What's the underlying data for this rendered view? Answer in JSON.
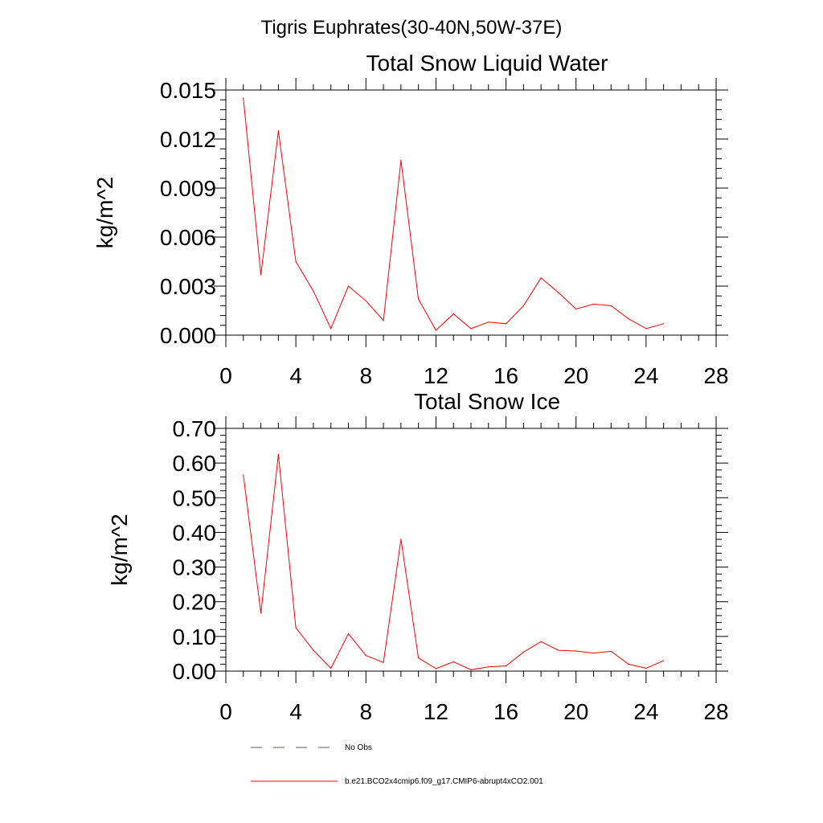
{
  "page_title": "Tigris Euphrates(30-40N,50W-37E)",
  "legend": [
    {
      "label": "No Obs",
      "style": "dashed",
      "color": "#5a5a7a"
    },
    {
      "label": "b.e21.BCO2x4cmip6.f09_g17.CMIP6-abrupt4xCO2.001",
      "style": "solid",
      "color": "#ff0000"
    }
  ],
  "chart_data": [
    {
      "type": "line",
      "title": "Total Snow Liquid Water",
      "xlabel": "",
      "ylabel": "kg/m^2",
      "xlim": [
        0,
        28
      ],
      "ylim": [
        0,
        0.015
      ],
      "x_ticks": [
        "0",
        "4",
        "8",
        "12",
        "16",
        "20",
        "24",
        "28"
      ],
      "x_tick_values": [
        0,
        4,
        8,
        12,
        16,
        20,
        24,
        28
      ],
      "y_ticks": [
        "0.000",
        "0.003",
        "0.006",
        "0.009",
        "0.012",
        "0.015"
      ],
      "y_tick_values": [
        0,
        0.003,
        0.006,
        0.009,
        0.012,
        0.015
      ],
      "series": [
        {
          "name": "b.e21.BCO2x4cmip6.f09_g17.CMIP6-abrupt4xCO2.001",
          "color": "#ff0000",
          "x": [
            1,
            2,
            3,
            4,
            5,
            6,
            7,
            8,
            9,
            10,
            11,
            12,
            13,
            14,
            15,
            16,
            17,
            18,
            19,
            20,
            21,
            22,
            23,
            24,
            25
          ],
          "values": [
            0.0145,
            0.0037,
            0.0125,
            0.0045,
            0.0027,
            0.0004,
            0.003,
            0.0021,
            0.0009,
            0.0107,
            0.0022,
            0.0003,
            0.0013,
            0.0004,
            0.0008,
            0.0007,
            0.0018,
            0.0035,
            0.0026,
            0.0016,
            0.0019,
            0.0018,
            0.001,
            0.0004,
            0.0007
          ]
        }
      ]
    },
    {
      "type": "line",
      "title": "Total Snow Ice",
      "xlabel": "",
      "ylabel": "kg/m^2",
      "xlim": [
        0,
        28
      ],
      "ylim": [
        0,
        0.7
      ],
      "x_ticks": [
        "0",
        "4",
        "8",
        "12",
        "16",
        "20",
        "24",
        "28"
      ],
      "x_tick_values": [
        0,
        4,
        8,
        12,
        16,
        20,
        24,
        28
      ],
      "y_ticks": [
        "0.00",
        "0.10",
        "0.20",
        "0.30",
        "0.40",
        "0.50",
        "0.60",
        "0.70"
      ],
      "y_tick_values": [
        0,
        0.1,
        0.2,
        0.3,
        0.4,
        0.5,
        0.6,
        0.7
      ],
      "series": [
        {
          "name": "b.e21.BCO2x4cmip6.f09_g17.CMIP6-abrupt4xCO2.001",
          "color": "#ff0000",
          "x": [
            1,
            2,
            3,
            4,
            5,
            6,
            7,
            8,
            9,
            10,
            11,
            12,
            13,
            14,
            15,
            16,
            17,
            18,
            19,
            20,
            21,
            22,
            23,
            24,
            25
          ],
          "values": [
            0.565,
            0.167,
            0.625,
            0.125,
            0.06,
            0.008,
            0.108,
            0.045,
            0.025,
            0.38,
            0.038,
            0.007,
            0.027,
            0.004,
            0.012,
            0.015,
            0.055,
            0.085,
            0.06,
            0.058,
            0.052,
            0.057,
            0.02,
            0.008,
            0.03
          ]
        }
      ]
    }
  ]
}
